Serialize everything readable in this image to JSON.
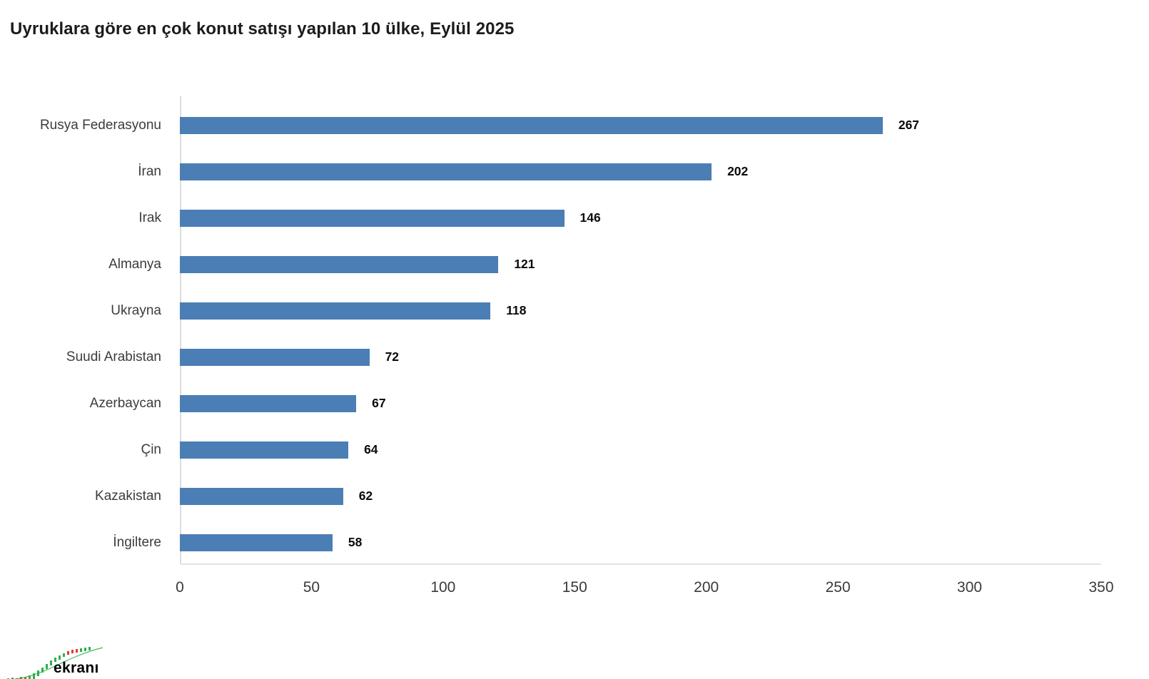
{
  "title": "Uyruklara göre en çok konut satışı yapılan 10 ülke, Eylül 2025",
  "chart_data": {
    "type": "bar",
    "orientation": "horizontal",
    "title": "Uyruklara göre en çok konut satışı yapılan 10 ülke, Eylül 2025",
    "categories": [
      "Rusya Federasyonu",
      "İran",
      "Irak",
      "Almanya",
      "Ukrayna",
      "Suudi Arabistan",
      "Azerbaycan",
      "Çin",
      "Kazakistan",
      "İngiltere"
    ],
    "values": [
      267,
      202,
      146,
      121,
      118,
      72,
      67,
      64,
      62,
      58
    ],
    "xlabel": "",
    "ylabel": "",
    "xlim": [
      0,
      350
    ],
    "x_ticks": [
      0,
      50,
      100,
      150,
      200,
      250,
      300,
      350
    ],
    "grid": false,
    "legend": "none",
    "value_labels": true,
    "bar_color": "#4a7eb5"
  },
  "colors": {
    "bar": "#4a7eb5",
    "axis_line": "#dcdcdc",
    "title_text": "#1c1c1e",
    "label_text": "#3c3c3c",
    "value_text": "#0a0a0a",
    "watermark_yellow": "#f0d400",
    "candle_green": "#2eaf4e",
    "candle_red": "#e03c31"
  },
  "watermark": {
    "text": "ekranı"
  }
}
